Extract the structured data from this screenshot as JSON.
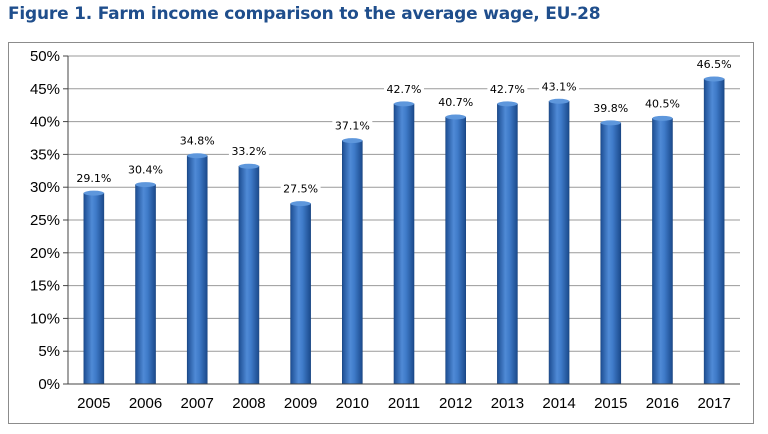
{
  "figure": {
    "title": "Figure 1. Farm income comparison to the average wage, EU-28"
  },
  "chart_data": {
    "type": "bar",
    "title": "",
    "xlabel": "",
    "ylabel": "",
    "categories": [
      "2005",
      "2006",
      "2007",
      "2008",
      "2009",
      "2010",
      "2011",
      "2012",
      "2013",
      "2014",
      "2015",
      "2016",
      "2017"
    ],
    "values": [
      29.1,
      30.4,
      34.8,
      33.2,
      27.5,
      37.1,
      42.7,
      40.7,
      42.7,
      43.1,
      39.8,
      40.5,
      46.5
    ],
    "value_labels": [
      "29.1%",
      "30.4%",
      "34.8%",
      "33.2%",
      "27.5%",
      "37.1%",
      "42.7%",
      "40.7%",
      "42.7%",
      "43.1%",
      "39.8%",
      "40.5%",
      "46.5%"
    ],
    "ylim": [
      0,
      50
    ],
    "yticks": [
      0,
      5,
      10,
      15,
      20,
      25,
      30,
      35,
      40,
      45,
      50
    ],
    "ytick_labels": [
      "0%",
      "5%",
      "10%",
      "15%",
      "20%",
      "25%",
      "30%",
      "35%",
      "40%",
      "45%",
      "50%"
    ],
    "grid": true,
    "legend": "none",
    "bar_color": "#3b75c4"
  }
}
